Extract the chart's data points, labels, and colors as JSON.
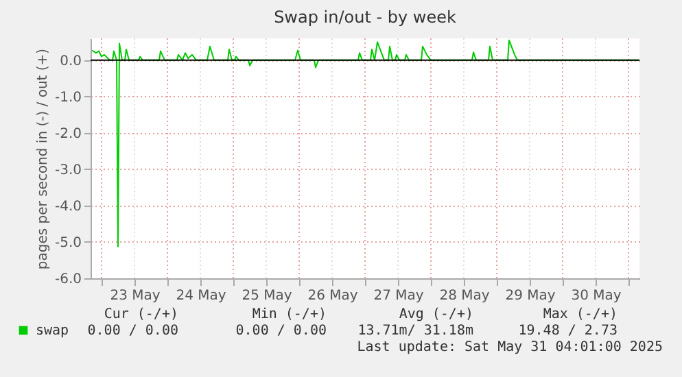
{
  "chart_data": {
    "type": "line",
    "title": "Swap in/out - by week",
    "ylabel": "pages per second in (-) / out (+)",
    "xlim": [
      "2025-05-22T20:00",
      "2025-05-31T04:00"
    ],
    "xticks": [
      {
        "value": "2025-05-23T00:00",
        "label": null
      },
      {
        "value": "2025-05-23T12:00",
        "label": "23 May"
      },
      {
        "value": "2025-05-24T00:00",
        "label": null
      },
      {
        "value": "2025-05-24T12:00",
        "label": "24 May"
      },
      {
        "value": "2025-05-25T00:00",
        "label": null
      },
      {
        "value": "2025-05-25T12:00",
        "label": "25 May"
      },
      {
        "value": "2025-05-26T00:00",
        "label": null
      },
      {
        "value": "2025-05-26T12:00",
        "label": "26 May"
      },
      {
        "value": "2025-05-27T00:00",
        "label": null
      },
      {
        "value": "2025-05-27T12:00",
        "label": "27 May"
      },
      {
        "value": "2025-05-28T00:00",
        "label": null
      },
      {
        "value": "2025-05-28T12:00",
        "label": "28 May"
      },
      {
        "value": "2025-05-29T00:00",
        "label": null
      },
      {
        "value": "2025-05-29T12:00",
        "label": "29 May"
      },
      {
        "value": "2025-05-30T00:00",
        "label": null
      },
      {
        "value": "2025-05-30T12:00",
        "label": "30 May"
      },
      {
        "value": "2025-05-31T00:00",
        "label": null
      }
    ],
    "ylim": [
      -6,
      0.6
    ],
    "yticks": [
      {
        "value": -6,
        "label": "-6.0"
      },
      {
        "value": -5,
        "label": "-5.0"
      },
      {
        "value": -4,
        "label": "-4.0"
      },
      {
        "value": -3,
        "label": "-3.0"
      },
      {
        "value": -2,
        "label": "-2.0"
      },
      {
        "value": -1,
        "label": "-1.0"
      },
      {
        "value": 0,
        "label": "0.0"
      }
    ],
    "grid": true,
    "legend": "bottom",
    "marker": "none",
    "line_style": "solid",
    "ref_lines": [
      {
        "axis": "y",
        "value": 0,
        "color": "#000000"
      }
    ],
    "x": [
      "2025-05-22T20:30",
      "2025-05-22T22:00",
      "2025-05-22T23:00",
      "2025-05-23T00:00",
      "2025-05-23T01:00",
      "2025-05-23T03:00",
      "2025-05-23T04:00",
      "2025-05-23T04:30",
      "2025-05-23T05:30",
      "2025-05-23T06:00",
      "2025-05-23T06:30",
      "2025-05-23T07:30",
      "2025-05-23T08:30",
      "2025-05-23T09:00",
      "2025-05-23T10:00",
      "2025-05-23T13:30",
      "2025-05-23T14:00",
      "2025-05-23T15:00",
      "2025-05-23T21:00",
      "2025-05-23T21:30",
      "2025-05-23T23:00",
      "2025-05-24T03:30",
      "2025-05-24T04:00",
      "2025-05-24T05:30",
      "2025-05-24T06:30",
      "2025-05-24T07:30",
      "2025-05-24T09:00",
      "2025-05-24T10:30",
      "2025-05-24T14:30",
      "2025-05-24T15:30",
      "2025-05-24T17:00",
      "2025-05-24T22:00",
      "2025-05-24T22:30",
      "2025-05-24T23:30",
      "2025-05-25T00:30",
      "2025-05-25T01:00",
      "2025-05-25T02:00",
      "2025-05-25T05:30",
      "2025-05-25T06:00",
      "2025-05-25T07:00",
      "2025-05-25T22:30",
      "2025-05-25T23:30",
      "2025-05-26T00:30",
      "2025-05-26T05:30",
      "2025-05-26T06:00",
      "2025-05-26T07:00",
      "2025-05-26T21:30",
      "2025-05-26T22:00",
      "2025-05-26T23:00",
      "2025-05-27T02:00",
      "2025-05-27T02:30",
      "2025-05-27T03:30",
      "2025-05-27T04:30",
      "2025-05-27T06:00",
      "2025-05-27T07:00",
      "2025-05-27T08:30",
      "2025-05-27T09:00",
      "2025-05-27T10:00",
      "2025-05-27T11:00",
      "2025-05-27T11:30",
      "2025-05-27T12:30",
      "2025-05-27T14:30",
      "2025-05-27T15:00",
      "2025-05-27T16:00",
      "2025-05-27T20:30",
      "2025-05-27T21:00",
      "2025-05-27T22:30",
      "2025-05-28T00:00",
      "2025-05-28T15:00",
      "2025-05-28T15:30",
      "2025-05-28T16:30",
      "2025-05-28T21:00",
      "2025-05-28T21:30",
      "2025-05-28T22:30",
      "2025-05-29T04:00",
      "2025-05-29T04:30",
      "2025-05-29T06:30",
      "2025-05-29T07:30",
      "2025-05-31T04:00"
    ],
    "series": [
      {
        "name": "swap",
        "color": "#00cc00",
        "values": [
          0.27,
          0.2,
          0.25,
          0.1,
          0.15,
          0,
          0,
          0.25,
          0,
          -5.13,
          0.46,
          0,
          0,
          0.3,
          0,
          0,
          0.1,
          0,
          0,
          0.25,
          0,
          0,
          0.15,
          0,
          0.2,
          0.05,
          0.15,
          0,
          0,
          0.38,
          0,
          0,
          0.3,
          0,
          0,
          0.1,
          0,
          0,
          -0.15,
          0,
          0,
          0.27,
          0,
          0,
          -0.2,
          0,
          0,
          0.2,
          0,
          0,
          0.3,
          0,
          0.5,
          0.2,
          0,
          0,
          0.38,
          0,
          0,
          0.15,
          0,
          0,
          0.15,
          0,
          0,
          0.38,
          0.15,
          0,
          0,
          0.22,
          0,
          0,
          0.38,
          0,
          0,
          0.55,
          0.15,
          0,
          0
        ]
      }
    ],
    "annotations": [
      "Cur (-/+)",
      "Min (-/+)",
      "Avg (-/+)",
      "Max (-/+)",
      "0.00 /  0.00",
      "0.00 /  0.00",
      "13.71m/ 31.18m",
      "19.48 /  2.73",
      "Last update: Sat May 31 04:01:00 2025"
    ]
  }
}
